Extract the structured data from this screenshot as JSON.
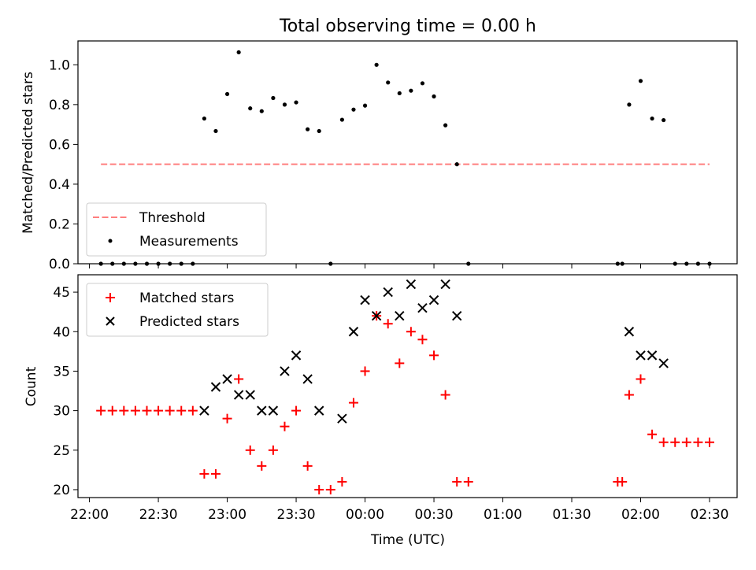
{
  "chart_data": [
    {
      "type": "scatter",
      "title": "Total observing time = 0.00 h",
      "xlabel": "",
      "ylabel": "Matched/Predicted stars",
      "ylim": [
        0,
        1.12
      ],
      "yticks": [
        "0.0",
        "0.2",
        "0.4",
        "0.6",
        "0.8",
        "1.0"
      ],
      "grid": false,
      "legend": "lower-left",
      "threshold": {
        "name": "Threshold",
        "y": 0.5,
        "x_start": "22:05",
        "x_end": "02:30",
        "color": "#ff7f7f",
        "style": "dashed"
      },
      "series": [
        {
          "name": "Measurements",
          "color": "#000000",
          "marker": "dot",
          "points": [
            {
              "x": "22:05",
              "y": 0
            },
            {
              "x": "22:10",
              "y": 0
            },
            {
              "x": "22:15",
              "y": 0
            },
            {
              "x": "22:20",
              "y": 0
            },
            {
              "x": "22:25",
              "y": 0
            },
            {
              "x": "22:30",
              "y": 0
            },
            {
              "x": "22:35",
              "y": 0
            },
            {
              "x": "22:40",
              "y": 0
            },
            {
              "x": "22:45",
              "y": 0
            },
            {
              "x": "22:50",
              "y": 0.73
            },
            {
              "x": "22:55",
              "y": 0.667
            },
            {
              "x": "23:00",
              "y": 0.853
            },
            {
              "x": "23:05",
              "y": 1.063
            },
            {
              "x": "23:10",
              "y": 0.781
            },
            {
              "x": "23:15",
              "y": 0.767
            },
            {
              "x": "23:20",
              "y": 0.833
            },
            {
              "x": "23:25",
              "y": 0.8
            },
            {
              "x": "23:30",
              "y": 0.811
            },
            {
              "x": "23:35",
              "y": 0.676
            },
            {
              "x": "23:40",
              "y": 0.667
            },
            {
              "x": "23:45",
              "y": 0
            },
            {
              "x": "23:50",
              "y": 0.724
            },
            {
              "x": "23:55",
              "y": 0.775
            },
            {
              "x": "00:00",
              "y": 0.795
            },
            {
              "x": "00:05",
              "y": 1.0
            },
            {
              "x": "00:10",
              "y": 0.911
            },
            {
              "x": "00:15",
              "y": 0.857
            },
            {
              "x": "00:20",
              "y": 0.87
            },
            {
              "x": "00:25",
              "y": 0.907
            },
            {
              "x": "00:30",
              "y": 0.841
            },
            {
              "x": "00:35",
              "y": 0.696
            },
            {
              "x": "00:40",
              "y": 0.5
            },
            {
              "x": "00:45",
              "y": 0
            },
            {
              "x": "01:50",
              "y": 0
            },
            {
              "x": "01:52",
              "y": 0
            },
            {
              "x": "01:55",
              "y": 0.8
            },
            {
              "x": "02:00",
              "y": 0.919
            },
            {
              "x": "02:05",
              "y": 0.73
            },
            {
              "x": "02:10",
              "y": 0.722
            },
            {
              "x": "02:15",
              "y": 0
            },
            {
              "x": "02:20",
              "y": 0
            },
            {
              "x": "02:25",
              "y": 0
            },
            {
              "x": "02:30",
              "y": 0
            }
          ]
        }
      ]
    },
    {
      "type": "scatter",
      "title": "",
      "xlabel": "Time (UTC)",
      "ylabel": "Count",
      "xlim": [
        "21:55",
        "02:42"
      ],
      "xticks": [
        "22:00",
        "22:30",
        "23:00",
        "23:30",
        "00:00",
        "00:30",
        "01:00",
        "01:30",
        "02:00",
        "02:30"
      ],
      "ylim": [
        19,
        47.2
      ],
      "yticks": [
        "20",
        "25",
        "30",
        "35",
        "40",
        "45"
      ],
      "grid": false,
      "legend": "top-left",
      "series": [
        {
          "name": "Matched stars",
          "color": "#ff0000",
          "marker": "plus",
          "points": [
            {
              "x": "22:05",
              "y": 30
            },
            {
              "x": "22:10",
              "y": 30
            },
            {
              "x": "22:15",
              "y": 30
            },
            {
              "x": "22:20",
              "y": 30
            },
            {
              "x": "22:25",
              "y": 30
            },
            {
              "x": "22:30",
              "y": 30
            },
            {
              "x": "22:35",
              "y": 30
            },
            {
              "x": "22:40",
              "y": 30
            },
            {
              "x": "22:45",
              "y": 30
            },
            {
              "x": "22:50",
              "y": 22
            },
            {
              "x": "22:55",
              "y": 22
            },
            {
              "x": "23:00",
              "y": 29
            },
            {
              "x": "23:05",
              "y": 34
            },
            {
              "x": "23:10",
              "y": 25
            },
            {
              "x": "23:15",
              "y": 23
            },
            {
              "x": "23:20",
              "y": 25
            },
            {
              "x": "23:25",
              "y": 28
            },
            {
              "x": "23:30",
              "y": 30
            },
            {
              "x": "23:35",
              "y": 23
            },
            {
              "x": "23:40",
              "y": 20
            },
            {
              "x": "23:45",
              "y": 20
            },
            {
              "x": "23:50",
              "y": 21
            },
            {
              "x": "23:55",
              "y": 31
            },
            {
              "x": "00:00",
              "y": 35
            },
            {
              "x": "00:05",
              "y": 42
            },
            {
              "x": "00:10",
              "y": 41
            },
            {
              "x": "00:15",
              "y": 36
            },
            {
              "x": "00:20",
              "y": 40
            },
            {
              "x": "00:25",
              "y": 39
            },
            {
              "x": "00:30",
              "y": 37
            },
            {
              "x": "00:35",
              "y": 32
            },
            {
              "x": "00:40",
              "y": 21
            },
            {
              "x": "00:45",
              "y": 21
            },
            {
              "x": "01:50",
              "y": 21
            },
            {
              "x": "01:52",
              "y": 21
            },
            {
              "x": "01:55",
              "y": 32
            },
            {
              "x": "02:00",
              "y": 34
            },
            {
              "x": "02:05",
              "y": 27
            },
            {
              "x": "02:10",
              "y": 26
            },
            {
              "x": "02:15",
              "y": 26
            },
            {
              "x": "02:20",
              "y": 26
            },
            {
              "x": "02:25",
              "y": 26
            },
            {
              "x": "02:30",
              "y": 26
            }
          ]
        },
        {
          "name": "Predicted stars",
          "color": "#000000",
          "marker": "x",
          "points": [
            {
              "x": "22:50",
              "y": 30
            },
            {
              "x": "22:55",
              "y": 33
            },
            {
              "x": "23:00",
              "y": 34
            },
            {
              "x": "23:05",
              "y": 32
            },
            {
              "x": "23:10",
              "y": 32
            },
            {
              "x": "23:15",
              "y": 30
            },
            {
              "x": "23:20",
              "y": 30
            },
            {
              "x": "23:25",
              "y": 35
            },
            {
              "x": "23:30",
              "y": 37
            },
            {
              "x": "23:35",
              "y": 34
            },
            {
              "x": "23:40",
              "y": 30
            },
            {
              "x": "23:50",
              "y": 29
            },
            {
              "x": "23:55",
              "y": 40
            },
            {
              "x": "00:00",
              "y": 44
            },
            {
              "x": "00:05",
              "y": 42
            },
            {
              "x": "00:10",
              "y": 45
            },
            {
              "x": "00:15",
              "y": 42
            },
            {
              "x": "00:20",
              "y": 46
            },
            {
              "x": "00:25",
              "y": 43
            },
            {
              "x": "00:30",
              "y": 44
            },
            {
              "x": "00:35",
              "y": 46
            },
            {
              "x": "00:40",
              "y": 42
            },
            {
              "x": "01:55",
              "y": 40
            },
            {
              "x": "02:00",
              "y": 37
            },
            {
              "x": "02:05",
              "y": 37
            },
            {
              "x": "02:10",
              "y": 36
            }
          ]
        }
      ]
    }
  ]
}
